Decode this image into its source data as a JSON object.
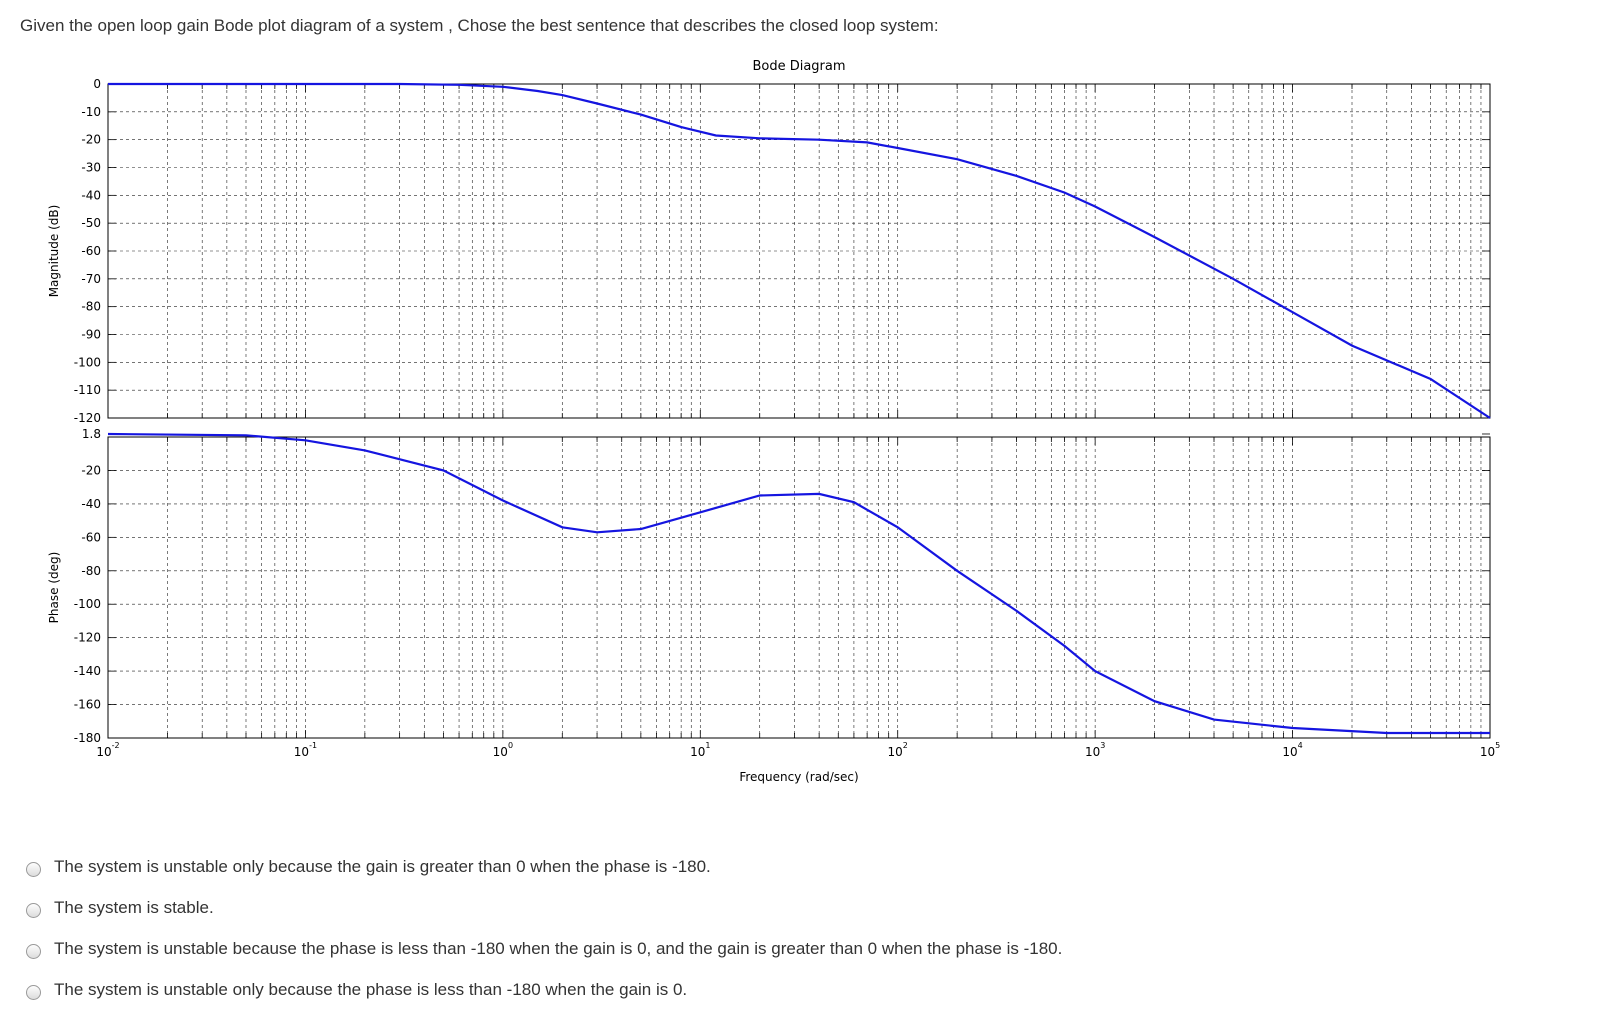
{
  "question": "Given the open loop gain Bode plot diagram of a system , Chose the best sentence that describes the closed loop system:",
  "chart_data": {
    "type": "line",
    "title": "Bode Diagram",
    "xlabel": "Frequency (rad/sec)",
    "x_scale": "log",
    "xlim": [
      0.01,
      100000
    ],
    "x_tick_labels": [
      {
        "base": "10",
        "exp": "-2"
      },
      {
        "base": "10",
        "exp": "-1"
      },
      {
        "base": "10",
        "exp": "0"
      },
      {
        "base": "10",
        "exp": "1"
      },
      {
        "base": "10",
        "exp": "2"
      },
      {
        "base": "10",
        "exp": "3"
      },
      {
        "base": "10",
        "exp": "4"
      },
      {
        "base": "10",
        "exp": "5"
      }
    ],
    "grid": true,
    "line_color": "#1515e0",
    "panels": [
      {
        "name": "magnitude",
        "ylabel": "Magnitude (dB)",
        "ylim": [
          -120,
          0
        ],
        "yticks": [
          "0",
          "-10",
          "-20",
          "-30",
          "-40",
          "-50",
          "-60",
          "-70",
          "-80",
          "-90",
          "-100",
          "-110",
          "-120"
        ],
        "x": [
          0.01,
          0.1,
          0.3,
          0.6,
          1,
          1.5,
          2,
          3,
          5,
          8,
          12,
          20,
          40,
          70,
          100,
          200,
          400,
          700,
          1000,
          2000,
          5000,
          10000,
          20000,
          50000,
          100000
        ],
        "y": [
          0,
          0,
          0,
          -0.3,
          -1,
          -2.5,
          -4,
          -7,
          -11,
          -15.5,
          -18.5,
          -19.5,
          -20,
          -21,
          -23,
          -27,
          -33,
          -39,
          -44,
          -55,
          -70,
          -82,
          -94,
          -106,
          -120
        ]
      },
      {
        "name": "phase",
        "ylabel": "Phase (deg)",
        "ylim": [
          -180,
          0
        ],
        "yticks": [
          "1.8",
          "-20",
          "-40",
          "-60",
          "-80",
          "-100",
          "-120",
          "-140",
          "-160",
          "-180"
        ],
        "x": [
          0.01,
          0.05,
          0.1,
          0.2,
          0.5,
          1,
          2,
          3,
          5,
          10,
          20,
          40,
          60,
          100,
          200,
          400,
          700,
          1000,
          2000,
          4000,
          10000,
          30000,
          100000
        ],
        "y": [
          1.8,
          1,
          -2,
          -8,
          -20,
          -38,
          -54,
          -57,
          -55,
          -45,
          -35,
          -34,
          -39,
          -54,
          -80,
          -104,
          -125,
          -140,
          -158,
          -169,
          -174,
          -177,
          -177
        ]
      }
    ]
  },
  "options": [
    {
      "label": "The system is unstable only because the gain is greater than 0 when the phase is -180."
    },
    {
      "label": "The system is stable."
    },
    {
      "label": "The system is unstable because the phase is less than -180 when the gain is 0, and the gain is greater than 0 when the phase is -180."
    },
    {
      "label": "The system is unstable only because the phase is less than -180 when the gain is 0."
    }
  ]
}
